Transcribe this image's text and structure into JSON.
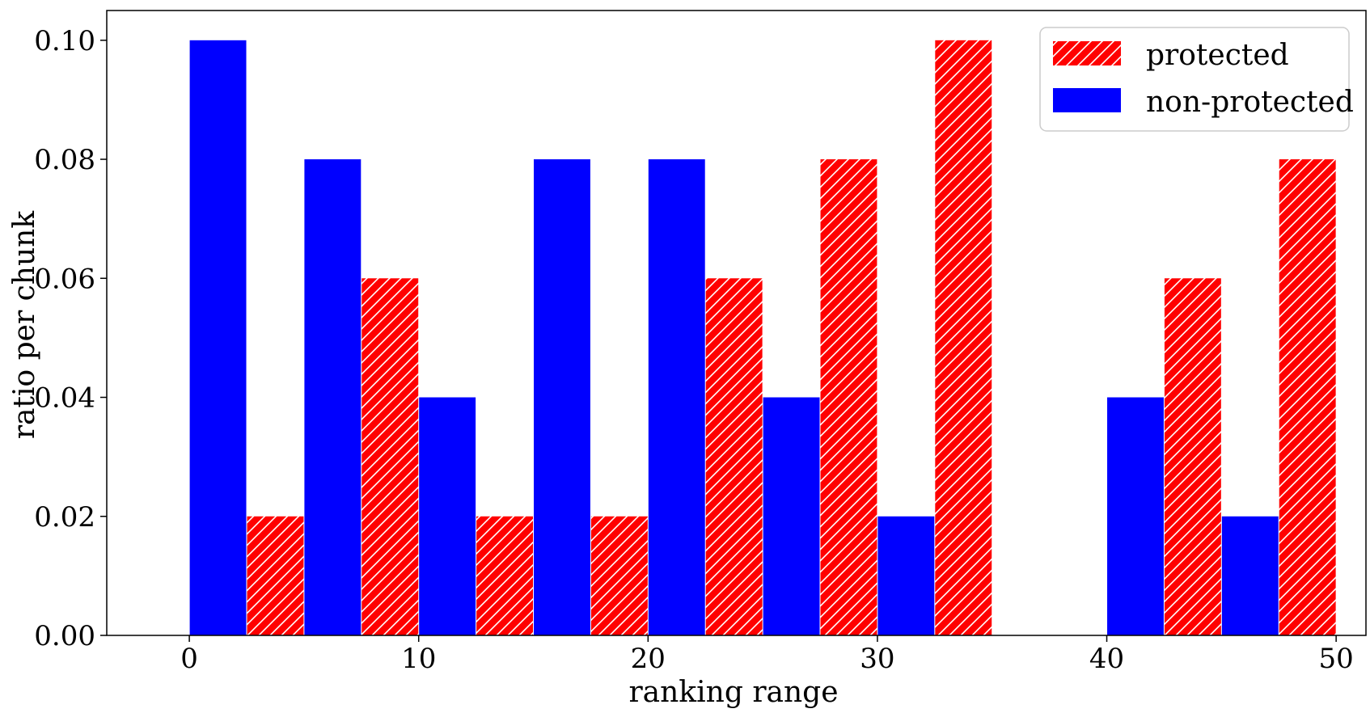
{
  "chart_data": {
    "type": "bar",
    "title": "",
    "xlabel": "ranking range",
    "ylabel": "ratio per chunk",
    "xlim": [
      -3.6,
      51.3
    ],
    "ylim": [
      0,
      0.105
    ],
    "xticks": [
      0,
      10,
      20,
      30,
      40,
      50
    ],
    "xtick_labels": [
      "0",
      "10",
      "20",
      "30",
      "40",
      "50"
    ],
    "yticks": [
      0,
      0.02,
      0.04,
      0.06,
      0.08,
      0.1
    ],
    "ytick_labels": [
      "0.00",
      "0.02",
      "0.04",
      "0.06",
      "0.08",
      "0.10"
    ],
    "grid": false,
    "legend_position": "top-right",
    "bin_starts": [
      0,
      5,
      10,
      15,
      20,
      25,
      30,
      35,
      40,
      45
    ],
    "bin_width": 5,
    "series": [
      {
        "name": "protected",
        "color": "#ff0000",
        "hatch": "diagonal",
        "offset": "right",
        "values": [
          0.02,
          0.06,
          0.02,
          0.02,
          0.06,
          0.08,
          0.1,
          0.0,
          0.06,
          0.08
        ]
      },
      {
        "name": "non-protected",
        "color": "#0000ff",
        "hatch": "none",
        "offset": "left",
        "values": [
          0.1,
          0.08,
          0.04,
          0.08,
          0.08,
          0.04,
          0.02,
          0.0,
          0.04,
          0.02
        ]
      }
    ]
  }
}
